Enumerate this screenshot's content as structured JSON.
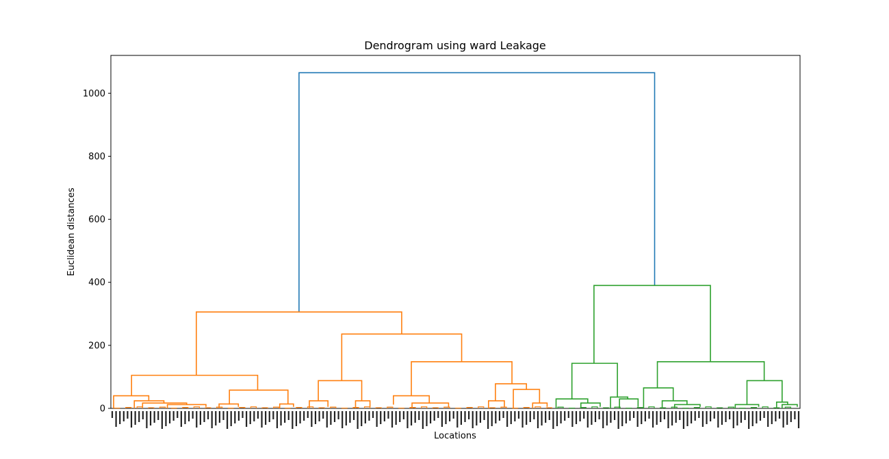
{
  "chart_data": {
    "type": "dendrogram",
    "title": "Dendrogram using ward Leakage",
    "xlabel": "Locations",
    "ylabel": "Euclidean distances",
    "ylim": [
      0,
      1120
    ],
    "yticks": [
      "0",
      "200",
      "400",
      "600",
      "800",
      "1000"
    ],
    "grid": false,
    "colors": {
      "root": "#1f77b4",
      "cluster_left": "#ff7f0e",
      "cluster_right": "#2ca02c"
    },
    "links": [
      {
        "cluster": "root",
        "x": [
          0.273,
          0.789
        ],
        "height": 1065,
        "children": [
          306,
          390
        ]
      },
      {
        "cluster": "cluster_left",
        "x": [
          0.124,
          0.422
        ],
        "height": 306,
        "children": [
          105,
          236
        ]
      },
      {
        "cluster": "cluster_left",
        "x": [
          0.03,
          0.213
        ],
        "height": 105,
        "children": [
          40,
          58
        ]
      },
      {
        "cluster": "cluster_left",
        "x": [
          0.004,
          0.055
        ],
        "height": 40,
        "children": [
          0,
          24
        ]
      },
      {
        "cluster": "cluster_left",
        "x": [
          0.034,
          0.077
        ],
        "height": 24,
        "children": [
          0,
          17
        ]
      },
      {
        "cluster": "cluster_left",
        "x": [
          0.046,
          0.11
        ],
        "height": 17,
        "children": [
          0,
          12
        ]
      },
      {
        "cluster": "cluster_left",
        "x": [
          0.082,
          0.138
        ],
        "height": 12,
        "children": [
          0,
          5
        ]
      },
      {
        "cluster": "cluster_left",
        "x": [
          0.172,
          0.257
        ],
        "height": 58,
        "children": [
          12,
          14
        ]
      },
      {
        "cluster": "cluster_left",
        "x": [
          0.157,
          0.185
        ],
        "height": 14,
        "children": [
          0,
          5
        ]
      },
      {
        "cluster": "cluster_left",
        "x": [
          0.245,
          0.265
        ],
        "height": 14,
        "children": [
          0,
          5
        ]
      },
      {
        "cluster": "cluster_left",
        "x": [
          0.335,
          0.509
        ],
        "height": 236,
        "children": [
          88,
          148
        ]
      },
      {
        "cluster": "cluster_left",
        "x": [
          0.301,
          0.364
        ],
        "height": 88,
        "children": [
          24,
          24
        ]
      },
      {
        "cluster": "cluster_left",
        "x": [
          0.288,
          0.315
        ],
        "height": 24,
        "children": [
          0,
          5
        ]
      },
      {
        "cluster": "cluster_left",
        "x": [
          0.355,
          0.376
        ],
        "height": 24,
        "children": [
          0,
          5
        ]
      },
      {
        "cluster": "cluster_left",
        "x": [
          0.436,
          0.582
        ],
        "height": 148,
        "children": [
          40,
          78
        ]
      },
      {
        "cluster": "cluster_left",
        "x": [
          0.41,
          0.462
        ],
        "height": 40,
        "children": [
          12,
          17
        ]
      },
      {
        "cluster": "cluster_left",
        "x": [
          0.437,
          0.49
        ],
        "height": 17,
        "children": [
          0,
          5
        ]
      },
      {
        "cluster": "cluster_left",
        "x": [
          0.558,
          0.603
        ],
        "height": 78,
        "children": [
          24,
          60
        ]
      },
      {
        "cluster": "cluster_left",
        "x": [
          0.548,
          0.571
        ],
        "height": 24,
        "children": [
          0,
          5
        ]
      },
      {
        "cluster": "cluster_left",
        "x": [
          0.584,
          0.622
        ],
        "height": 60,
        "children": [
          0,
          17
        ]
      },
      {
        "cluster": "cluster_left",
        "x": [
          0.612,
          0.633
        ],
        "height": 17,
        "children": [
          0,
          5
        ]
      },
      {
        "cluster": "cluster_right",
        "x": [
          0.701,
          0.87
        ],
        "height": 390,
        "children": [
          143,
          148
        ]
      },
      {
        "cluster": "cluster_right",
        "x": [
          0.669,
          0.735
        ],
        "height": 143,
        "children": [
          30,
          36
        ]
      },
      {
        "cluster": "cluster_right",
        "x": [
          0.646,
          0.692
        ],
        "height": 30,
        "children": [
          0,
          17
        ]
      },
      {
        "cluster": "cluster_right",
        "x": [
          0.682,
          0.71
        ],
        "height": 17,
        "children": [
          0,
          5
        ]
      },
      {
        "cluster": "cluster_right",
        "x": [
          0.725,
          0.75
        ],
        "height": 36,
        "children": [
          0,
          30
        ]
      },
      {
        "cluster": "cluster_right",
        "x": [
          0.738,
          0.765
        ],
        "height": 30,
        "children": [
          0,
          5
        ]
      },
      {
        "cluster": "cluster_right",
        "x": [
          0.793,
          0.948
        ],
        "height": 148,
        "children": [
          65,
          88
        ]
      },
      {
        "cluster": "cluster_right",
        "x": [
          0.773,
          0.816
        ],
        "height": 65,
        "children": [
          0,
          24
        ]
      },
      {
        "cluster": "cluster_right",
        "x": [
          0.8,
          0.836
        ],
        "height": 24,
        "children": [
          0,
          12
        ]
      },
      {
        "cluster": "cluster_right",
        "x": [
          0.818,
          0.855
        ],
        "height": 12,
        "children": [
          0,
          5
        ]
      },
      {
        "cluster": "cluster_right",
        "x": [
          0.923,
          0.974
        ],
        "height": 88,
        "children": [
          12,
          20
        ]
      },
      {
        "cluster": "cluster_right",
        "x": [
          0.906,
          0.94
        ],
        "height": 12,
        "children": [
          0,
          5
        ]
      },
      {
        "cluster": "cluster_right",
        "x": [
          0.966,
          0.982
        ],
        "height": 20,
        "children": [
          0,
          12
        ]
      },
      {
        "cluster": "cluster_right",
        "x": [
          0.974,
          0.996
        ],
        "height": 12,
        "children": [
          0,
          5
        ]
      }
    ],
    "leaf_label_count": 180
  }
}
